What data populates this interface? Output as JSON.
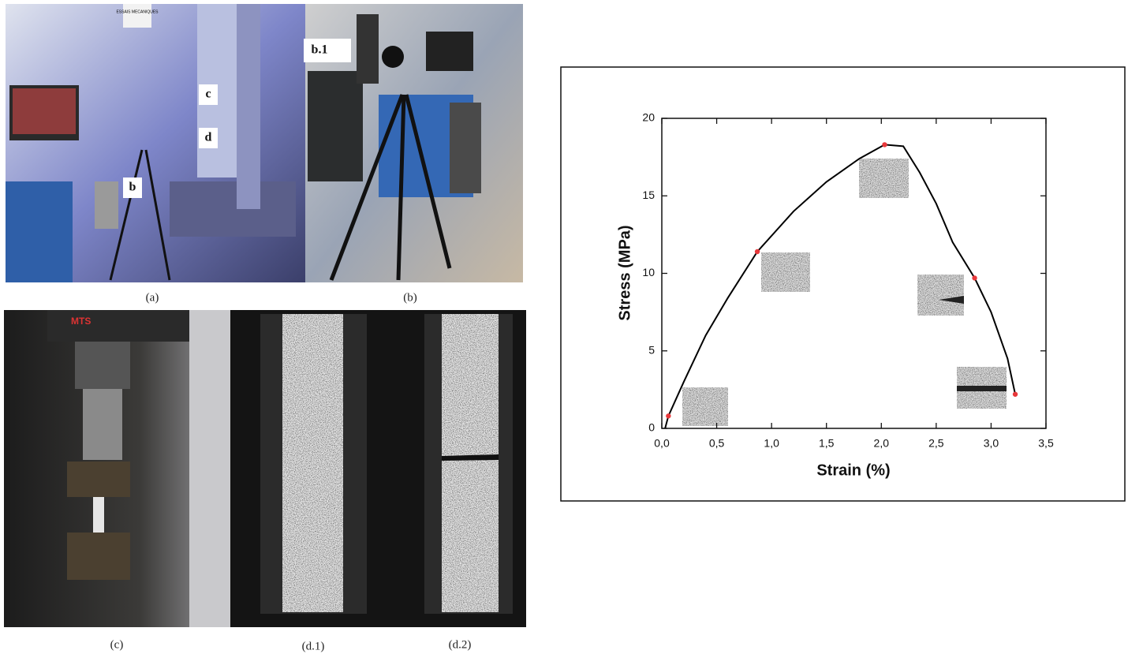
{
  "panels": {
    "a": {
      "caption": "(a)",
      "sign": "ESSAIS MECANIQUES",
      "callouts": [
        "c",
        "d",
        "b"
      ]
    },
    "b": {
      "caption": "(b)",
      "callout": "b.1"
    },
    "c": {
      "caption": "(c)",
      "brand": "MTS"
    },
    "d1": {
      "caption": "(d.1)"
    },
    "d2": {
      "caption": "(d.2)"
    }
  },
  "chart_data": {
    "type": "line",
    "xlabel": "Strain (%)",
    "ylabel": "Stress (MPa)",
    "xlim": [
      0,
      3.5
    ],
    "xticks": [
      {
        "value": 0,
        "label": "0,0"
      },
      {
        "value": 0.5,
        "label": "0,5"
      },
      {
        "value": 1,
        "label": "1,0"
      },
      {
        "value": 1.5,
        "label": "1,5"
      },
      {
        "value": 2,
        "label": "2,0"
      },
      {
        "value": 2.5,
        "label": "2,5"
      },
      {
        "value": 3,
        "label": "3,0"
      },
      {
        "value": 3.5,
        "label": "3,5"
      }
    ],
    "ylim": [
      0,
      20
    ],
    "yticks": [
      0,
      5,
      10,
      15,
      20
    ],
    "series": [
      {
        "color": "#000000",
        "marker": false,
        "x": [
          0.03,
          0.06,
          0.2,
          0.4,
          0.6,
          0.87,
          1.2,
          1.5,
          1.8,
          2.03,
          2.2,
          2.35,
          2.5,
          2.65,
          2.85,
          3.0,
          3.15,
          3.22
        ],
        "values": [
          0,
          0.8,
          3,
          6,
          8.4,
          11.4,
          14,
          15.9,
          17.4,
          18.3,
          18.2,
          16.5,
          14.5,
          12,
          9.7,
          7.5,
          4.5,
          2.2
        ]
      },
      {
        "color": "#e8383b",
        "marker": true,
        "x": [
          0.06,
          0.87,
          2.03,
          2.85,
          3.22
        ],
        "values": [
          0.8,
          11.4,
          18.3,
          9.7,
          2.2
        ]
      }
    ]
  }
}
